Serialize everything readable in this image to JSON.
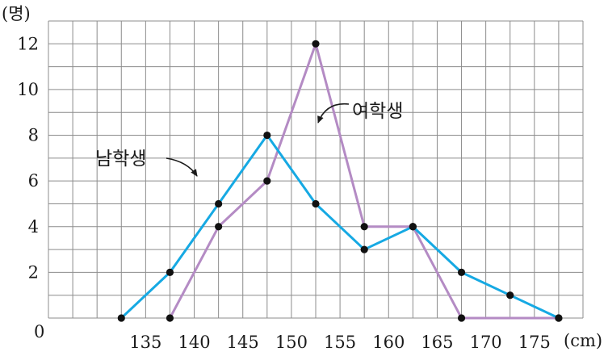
{
  "chart_data": {
    "type": "line",
    "ylabel": "(명)",
    "xlabel": "(cm)",
    "origin_label": "0",
    "x_ticks": [
      135,
      140,
      145,
      150,
      155,
      160,
      165,
      170,
      175
    ],
    "y_ticks": [
      2,
      4,
      6,
      8,
      10,
      12
    ],
    "xlim": [
      125,
      180
    ],
    "ylim": [
      0,
      13
    ],
    "grid": true,
    "grid_step_x": 2.5,
    "grid_step_y": 1,
    "series": [
      {
        "name": "남학생",
        "color": "#16a9e3",
        "x": [
          132.5,
          137.5,
          142.5,
          147.5,
          152.5,
          157.5,
          162.5,
          167.5,
          172.5,
          177.5
        ],
        "y": [
          0,
          2,
          5,
          8,
          5,
          3,
          4,
          2,
          1,
          0
        ]
      },
      {
        "name": "여학생",
        "color": "#b48bc4",
        "x": [
          137.5,
          142.5,
          147.5,
          152.5,
          157.5,
          162.5,
          167.5,
          177.5
        ],
        "y": [
          0,
          4,
          6,
          12,
          4,
          4,
          0,
          0
        ]
      }
    ]
  }
}
